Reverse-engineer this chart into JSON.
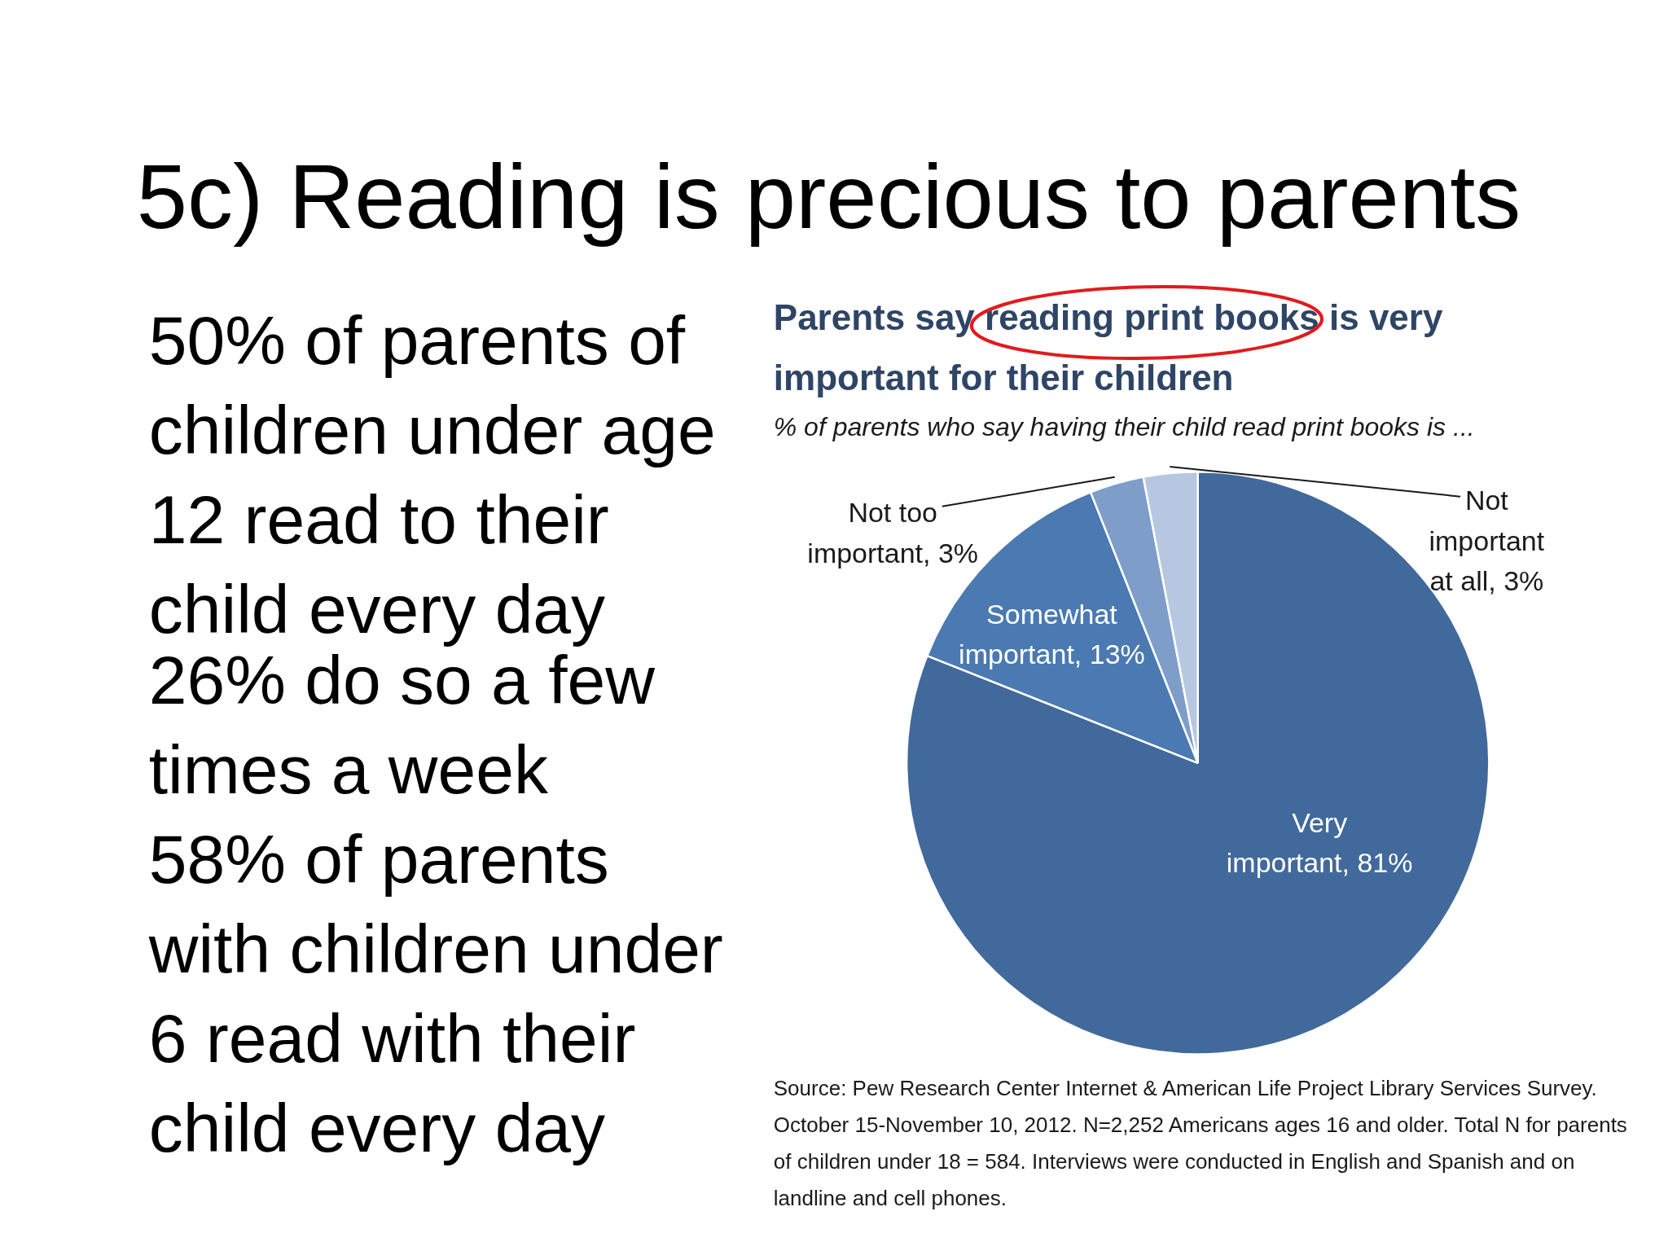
{
  "chart_data": {
    "type": "pie",
    "title": "Parents say reading print books is very important for their children",
    "subtitle": "% of parents who say having their child read print books is ...",
    "categories": [
      "Very important",
      "Somewhat important",
      "Not too important",
      "Not important at all"
    ],
    "values": [
      81,
      13,
      3,
      3
    ],
    "value_labels": [
      "81%",
      "13%",
      "3%",
      "3%"
    ],
    "colors": [
      "#41699b",
      "#4b79b1",
      "#7f9dc9",
      "#b8c7e1"
    ],
    "annotations": [
      "5c) Reading is precious to parents",
      "50%  of parents of children under age 12 read to their child every day",
      "26% do so a few times a week",
      "58% of parents with children under 6 read with their child every day",
      "Source: Pew Research Center Internet & American Life Project Library Services Survey. October 15-November 10, 2012. N=2,252 Americans ages 16 and older. Total N for parents of children under 18 = 584. Interviews were conducted in English and Spanish and on landline and cell phones."
    ]
  }
}
